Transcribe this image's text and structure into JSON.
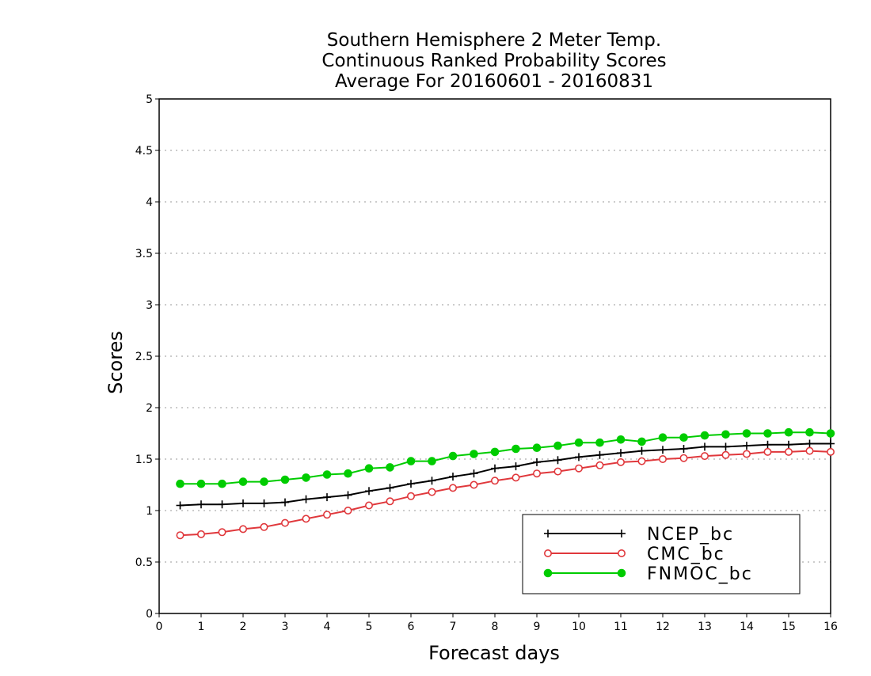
{
  "chart_data": {
    "type": "line",
    "title_lines": [
      "Southern Hemisphere 2 Meter Temp.",
      "Continuous Ranked Probability Scores",
      "Average For 20160601 - 20160831"
    ],
    "xlabel": "Forecast days",
    "ylabel": "Scores",
    "xlim": [
      0,
      16
    ],
    "ylim": [
      0,
      5
    ],
    "x_ticks": [
      "0",
      "1",
      "2",
      "3",
      "4",
      "5",
      "6",
      "7",
      "8",
      "9",
      "10",
      "11",
      "12",
      "13",
      "14",
      "15",
      "16"
    ],
    "y_ticks": [
      "0",
      "0.5",
      "1",
      "1.5",
      "2",
      "2.5",
      "3",
      "3.5",
      "4",
      "4.5",
      "5"
    ],
    "grid": "horizontal dotted",
    "legend_position": "bottom-right",
    "x": [
      0.5,
      1,
      1.5,
      2,
      2.5,
      3,
      3.5,
      4,
      4.5,
      5,
      5.5,
      6,
      6.5,
      7,
      7.5,
      8,
      8.5,
      9,
      9.5,
      10,
      10.5,
      11,
      11.5,
      12,
      12.5,
      13,
      13.5,
      14,
      14.5,
      15,
      15.5,
      16
    ],
    "series": [
      {
        "name": "NCEP_bc",
        "color": "#000000",
        "marker": "plus",
        "values": [
          1.05,
          1.06,
          1.06,
          1.07,
          1.07,
          1.08,
          1.11,
          1.13,
          1.15,
          1.19,
          1.22,
          1.26,
          1.29,
          1.33,
          1.36,
          1.41,
          1.43,
          1.47,
          1.49,
          1.52,
          1.54,
          1.56,
          1.58,
          1.59,
          1.6,
          1.62,
          1.62,
          1.63,
          1.64,
          1.64,
          1.65,
          1.65
        ]
      },
      {
        "name": "CMC_bc",
        "color": "#e0383c",
        "marker": "open-circle",
        "values": [
          0.76,
          0.77,
          0.79,
          0.82,
          0.84,
          0.88,
          0.92,
          0.96,
          1.0,
          1.05,
          1.09,
          1.14,
          1.18,
          1.22,
          1.25,
          1.29,
          1.32,
          1.36,
          1.38,
          1.41,
          1.44,
          1.47,
          1.48,
          1.5,
          1.51,
          1.53,
          1.54,
          1.55,
          1.57,
          1.57,
          1.58,
          1.57
        ]
      },
      {
        "name": "FNMOC_bc",
        "color": "#00cc00",
        "marker": "filled-circle",
        "values": [
          1.26,
          1.26,
          1.26,
          1.28,
          1.28,
          1.3,
          1.32,
          1.35,
          1.36,
          1.41,
          1.42,
          1.48,
          1.48,
          1.53,
          1.55,
          1.57,
          1.6,
          1.61,
          1.63,
          1.66,
          1.66,
          1.69,
          1.67,
          1.71,
          1.71,
          1.73,
          1.74,
          1.75,
          1.75,
          1.76,
          1.76,
          1.75
        ]
      }
    ]
  }
}
